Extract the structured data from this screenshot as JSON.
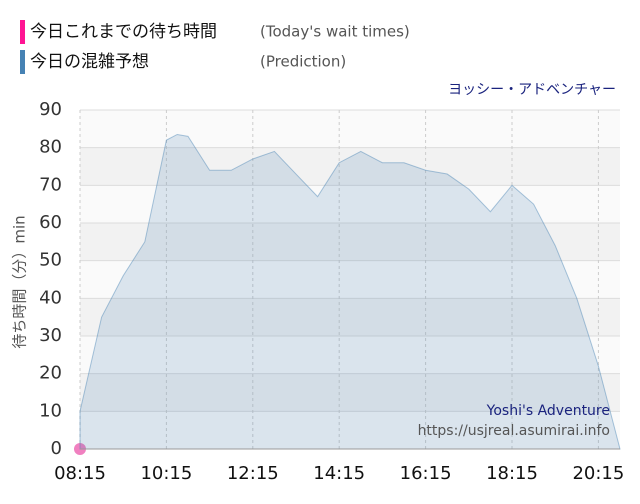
{
  "chart_data": {
    "type": "area",
    "attraction": "ヨッシー・アドベンチャー",
    "ylabel": "待ち時間（分）min",
    "watermark": [
      "Yoshi's Adventure",
      "https://usjreal.asumirai.info"
    ],
    "xlim": [
      "08:15",
      "20:45"
    ],
    "xticks": [
      "08:15",
      "10:15",
      "12:15",
      "14:15",
      "16:15",
      "18:15",
      "20:15"
    ],
    "ylim": [
      0,
      90
    ],
    "yticks": [
      0,
      10,
      20,
      30,
      40,
      50,
      60,
      70,
      80,
      90
    ],
    "grid": true,
    "series": [
      {
        "name": "今日これまでの待ち時間",
        "subname": "(Today's wait times)",
        "color": "#f080c0",
        "legend_color": "#ff1493",
        "style": "points",
        "x": [
          "08:15"
        ],
        "values": [
          0
        ]
      },
      {
        "name": "今日の混雑予想",
        "subname": "(Prediction)",
        "color": "#4682b4",
        "style": "area",
        "x": [
          "08:15",
          "08:45",
          "09:15",
          "09:45",
          "10:15",
          "10:30",
          "10:45",
          "11:15",
          "11:45",
          "12:15",
          "12:45",
          "13:15",
          "13:45",
          "14:15",
          "14:45",
          "15:15",
          "15:45",
          "16:15",
          "16:45",
          "17:15",
          "17:45",
          "18:15",
          "18:45",
          "19:15",
          "19:45",
          "20:15",
          "20:45"
        ],
        "values": [
          10,
          35,
          46,
          55,
          82,
          83.5,
          83,
          74,
          74,
          77,
          79,
          73,
          67,
          76,
          79,
          76,
          76,
          74,
          73,
          69,
          63,
          70,
          65,
          54,
          40,
          22,
          0
        ]
      }
    ]
  }
}
